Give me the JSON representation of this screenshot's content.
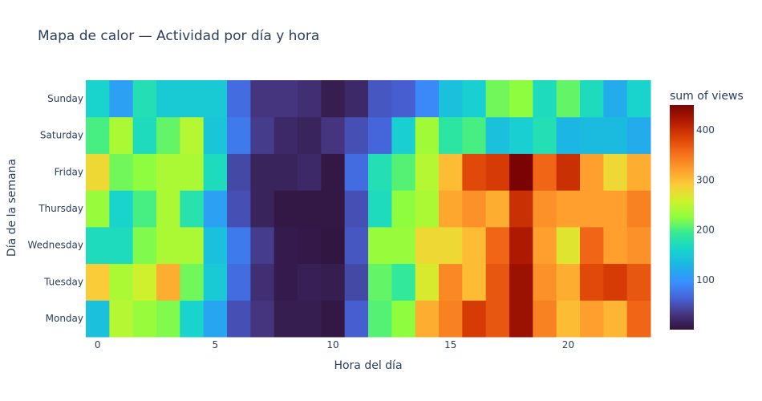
{
  "chart_data": {
    "type": "heatmap",
    "title": "Mapa de calor — Actividad por día y hora",
    "xlabel": "Hora del día",
    "ylabel": "Día de la semana",
    "x": [
      0,
      1,
      2,
      3,
      4,
      5,
      6,
      7,
      8,
      9,
      10,
      11,
      12,
      13,
      14,
      15,
      16,
      17,
      18,
      19,
      20,
      21,
      22,
      23
    ],
    "x_ticks": [
      0,
      5,
      10,
      15,
      20
    ],
    "y": [
      "Monday",
      "Tuesday",
      "Wednesday",
      "Thursday",
      "Friday",
      "Saturday",
      "Sunday"
    ],
    "z": [
      [
        140,
        245,
        230,
        220,
        160,
        115,
        50,
        30,
        10,
        10,
        5,
        60,
        205,
        225,
        310,
        340,
        390,
        370,
        430,
        340,
        300,
        320,
        305,
        360
      ],
      [
        290,
        240,
        260,
        310,
        215,
        150,
        70,
        25,
        8,
        12,
        10,
        45,
        210,
        190,
        265,
        335,
        300,
        370,
        430,
        330,
        310,
        380,
        390,
        370
      ],
      [
        170,
        170,
        220,
        240,
        240,
        140,
        80,
        35,
        8,
        6,
        3,
        55,
        230,
        230,
        280,
        280,
        300,
        360,
        420,
        320,
        270,
        360,
        320,
        330
      ],
      [
        230,
        160,
        200,
        240,
        180,
        110,
        50,
        15,
        5,
        5,
        5,
        50,
        170,
        225,
        240,
        315,
        330,
        310,
        400,
        330,
        320,
        320,
        320,
        340
      ],
      [
        280,
        215,
        225,
        240,
        240,
        170,
        45,
        15,
        15,
        20,
        5,
        70,
        175,
        205,
        245,
        300,
        380,
        390,
        450,
        360,
        400,
        320,
        280,
        310
      ],
      [
        200,
        240,
        170,
        210,
        245,
        145,
        80,
        35,
        20,
        15,
        30,
        50,
        65,
        155,
        235,
        185,
        200,
        140,
        155,
        175,
        130,
        135,
        135,
        120
      ],
      [
        160,
        110,
        175,
        150,
        150,
        150,
        70,
        30,
        30,
        25,
        10,
        20,
        55,
        60,
        90,
        140,
        155,
        215,
        225,
        170,
        210,
        170,
        120,
        160
      ]
    ],
    "colorscale_name": "Turbo",
    "zrange": [
      0,
      450
    ],
    "colorbar": {
      "title": "sum of views",
      "ticks": [
        100,
        200,
        300,
        400
      ]
    }
  }
}
